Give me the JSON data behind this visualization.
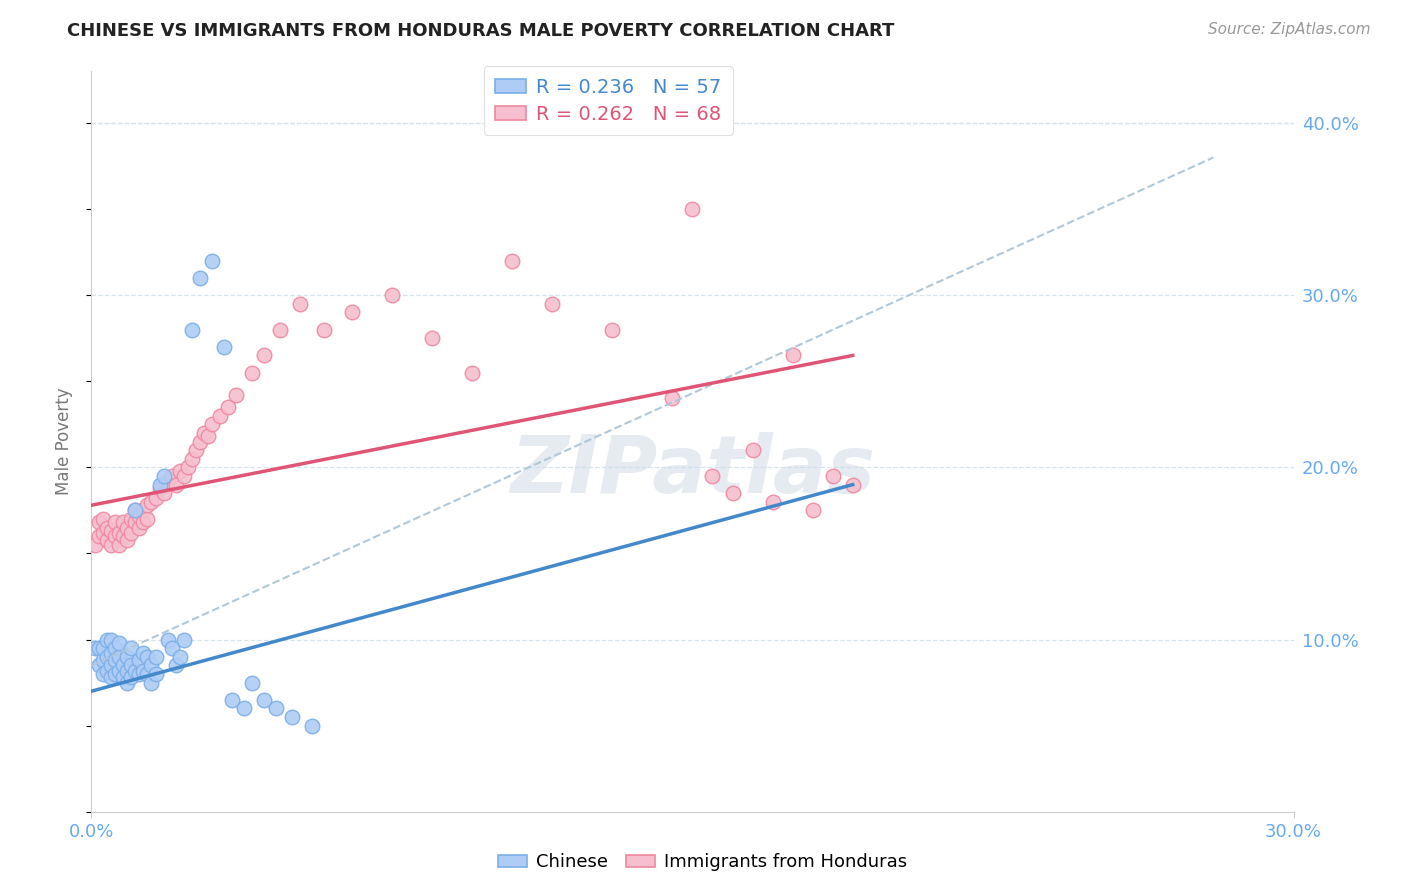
{
  "title": "CHINESE VS IMMIGRANTS FROM HONDURAS MALE POVERTY CORRELATION CHART",
  "source": "Source: ZipAtlas.com",
  "ylabel": "Male Poverty",
  "right_yticks": [
    "40.0%",
    "30.0%",
    "20.0%",
    "10.0%"
  ],
  "right_ytick_vals": [
    0.4,
    0.3,
    0.2,
    0.1
  ],
  "xlim": [
    0.0,
    0.3
  ],
  "ylim": [
    0.0,
    0.43
  ],
  "legend_r1": "R = 0.236   N = 57",
  "legend_r2": "R = 0.262   N = 68",
  "watermark": "ZIPatlas",
  "chinese_fill": "#aeccf5",
  "chinese_edge": "#7aaee8",
  "honduras_fill": "#f5bfcf",
  "honduras_edge": "#f087a0",
  "trendline_blue": "#4488cc",
  "trendline_pink": "#e05575",
  "dashed_color": "#b0c8d8",
  "grid_color": "#d8e4ec",
  "axis_color": "#66aaee",
  "chinese_scatter_x": [
    0.001,
    0.002,
    0.002,
    0.003,
    0.003,
    0.003,
    0.004,
    0.004,
    0.004,
    0.005,
    0.005,
    0.005,
    0.005,
    0.006,
    0.006,
    0.006,
    0.007,
    0.007,
    0.007,
    0.008,
    0.008,
    0.009,
    0.009,
    0.009,
    0.01,
    0.01,
    0.01,
    0.011,
    0.011,
    0.012,
    0.012,
    0.013,
    0.013,
    0.014,
    0.014,
    0.015,
    0.015,
    0.016,
    0.016,
    0.017,
    0.018,
    0.019,
    0.02,
    0.021,
    0.022,
    0.023,
    0.025,
    0.027,
    0.03,
    0.033,
    0.035,
    0.038,
    0.04,
    0.043,
    0.046,
    0.05,
    0.055
  ],
  "chinese_scatter_y": [
    0.095,
    0.085,
    0.095,
    0.08,
    0.088,
    0.095,
    0.082,
    0.09,
    0.1,
    0.078,
    0.085,
    0.092,
    0.1,
    0.08,
    0.088,
    0.095,
    0.082,
    0.09,
    0.098,
    0.078,
    0.085,
    0.075,
    0.082,
    0.09,
    0.078,
    0.085,
    0.095,
    0.082,
    0.175,
    0.08,
    0.088,
    0.082,
    0.092,
    0.08,
    0.09,
    0.075,
    0.085,
    0.08,
    0.09,
    0.19,
    0.195,
    0.1,
    0.095,
    0.085,
    0.09,
    0.1,
    0.28,
    0.31,
    0.32,
    0.27,
    0.065,
    0.06,
    0.075,
    0.065,
    0.06,
    0.055,
    0.05
  ],
  "honduras_scatter_x": [
    0.001,
    0.002,
    0.002,
    0.003,
    0.003,
    0.004,
    0.004,
    0.005,
    0.005,
    0.006,
    0.006,
    0.007,
    0.007,
    0.008,
    0.008,
    0.009,
    0.009,
    0.01,
    0.01,
    0.011,
    0.011,
    0.012,
    0.012,
    0.013,
    0.013,
    0.014,
    0.014,
    0.015,
    0.016,
    0.017,
    0.018,
    0.019,
    0.02,
    0.021,
    0.022,
    0.023,
    0.024,
    0.025,
    0.026,
    0.027,
    0.028,
    0.029,
    0.03,
    0.032,
    0.034,
    0.036,
    0.04,
    0.043,
    0.047,
    0.052,
    0.058,
    0.065,
    0.075,
    0.085,
    0.095,
    0.105,
    0.115,
    0.13,
    0.145,
    0.15,
    0.155,
    0.16,
    0.165,
    0.17,
    0.175,
    0.18,
    0.185,
    0.19
  ],
  "honduras_scatter_y": [
    0.155,
    0.16,
    0.168,
    0.162,
    0.17,
    0.158,
    0.165,
    0.155,
    0.163,
    0.16,
    0.168,
    0.155,
    0.162,
    0.16,
    0.168,
    0.158,
    0.165,
    0.162,
    0.17,
    0.168,
    0.175,
    0.165,
    0.172,
    0.168,
    0.175,
    0.17,
    0.178,
    0.18,
    0.182,
    0.188,
    0.185,
    0.192,
    0.195,
    0.19,
    0.198,
    0.195,
    0.2,
    0.205,
    0.21,
    0.215,
    0.22,
    0.218,
    0.225,
    0.23,
    0.235,
    0.242,
    0.255,
    0.265,
    0.28,
    0.295,
    0.28,
    0.29,
    0.3,
    0.275,
    0.255,
    0.32,
    0.295,
    0.28,
    0.24,
    0.35,
    0.195,
    0.185,
    0.21,
    0.18,
    0.265,
    0.175,
    0.195,
    0.19
  ],
  "blue_trend_x": [
    0.0,
    0.19
  ],
  "blue_trend_y": [
    0.07,
    0.19
  ],
  "pink_trend_x": [
    0.0,
    0.19
  ],
  "pink_trend_y": [
    0.178,
    0.265
  ],
  "dashed_trend_x": [
    0.0,
    0.28
  ],
  "dashed_trend_y": [
    0.085,
    0.38
  ]
}
